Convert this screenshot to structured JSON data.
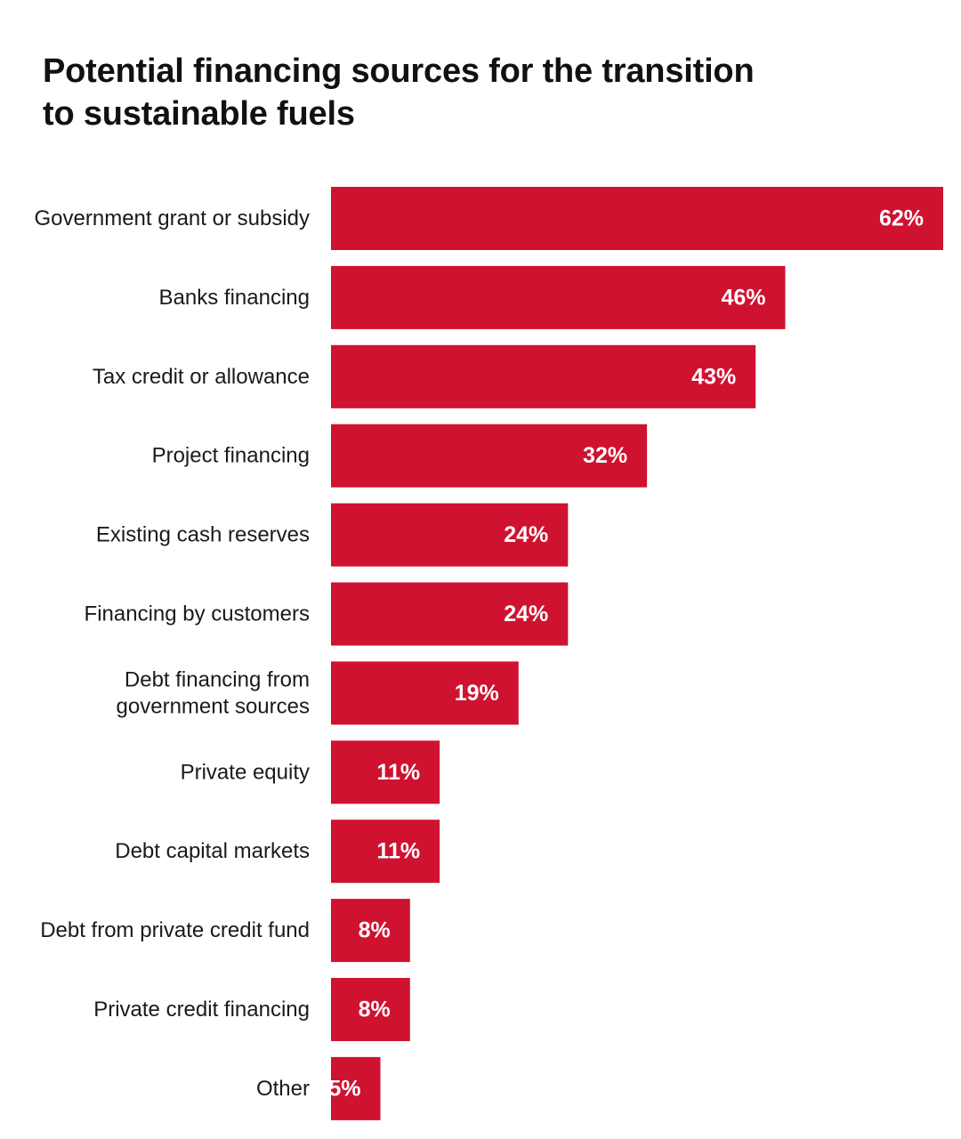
{
  "chart_data": {
    "type": "bar",
    "orientation": "horizontal",
    "title": "Potential financing sources for the transition to sustainable fuels",
    "title_lines": [
      "Potential financing sources for the transition",
      "to sustainable fuels"
    ],
    "categories": [
      [
        "Government grant or subsidy"
      ],
      [
        "Banks financing"
      ],
      [
        "Tax credit or allowance"
      ],
      [
        "Project financing"
      ],
      [
        "Existing cash reserves"
      ],
      [
        "Financing by customers"
      ],
      [
        "Debt financing from",
        "government sources"
      ],
      [
        "Private equity"
      ],
      [
        "Debt capital markets"
      ],
      [
        "Debt from private credit fund"
      ],
      [
        "Private credit financing"
      ],
      [
        "Other"
      ]
    ],
    "values": [
      62,
      46,
      43,
      32,
      24,
      24,
      19,
      11,
      11,
      8,
      8,
      5
    ],
    "value_labels": [
      "62%",
      "46%",
      "43%",
      "32%",
      "24%",
      "24%",
      "19%",
      "11%",
      "11%",
      "8%",
      "8%",
      "5%"
    ],
    "xlim": [
      0,
      62
    ],
    "unit": "%",
    "grid": false,
    "legend": "none",
    "bar_color": "#cf1230"
  }
}
